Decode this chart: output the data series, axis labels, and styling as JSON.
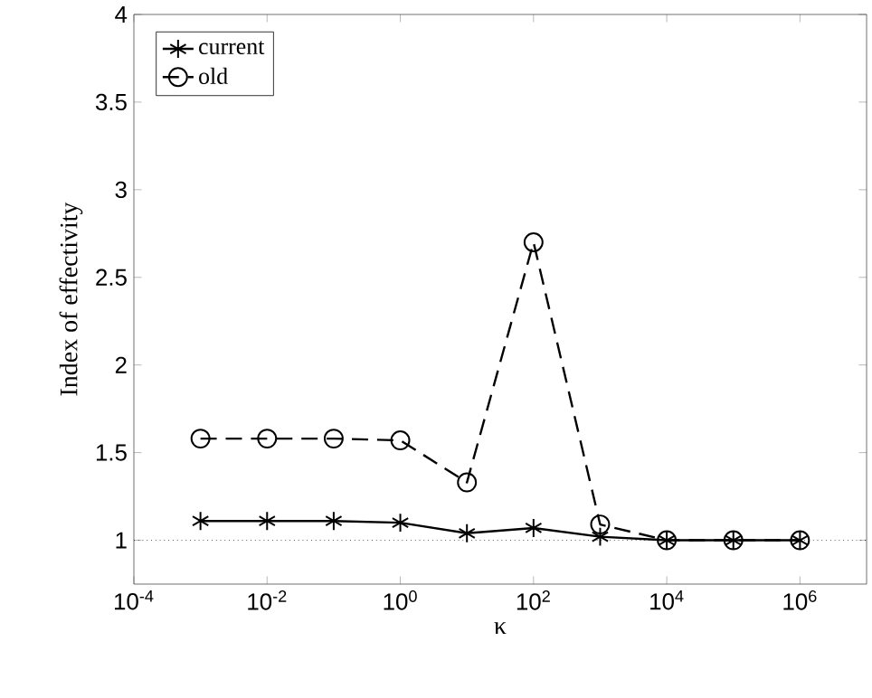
{
  "chart_data": {
    "type": "line",
    "xlabel": "κ",
    "ylabel": "Index of effectivity",
    "log": "x",
    "x": [
      0.001,
      0.01,
      0.1,
      1,
      10,
      100,
      1000,
      10000,
      100000,
      1000000
    ],
    "series": [
      {
        "name": "current",
        "color": "#000000",
        "marker": "cross",
        "line_style": "solid",
        "values": [
          1.11,
          1.11,
          1.11,
          1.1,
          1.04,
          1.07,
          1.02,
          1,
          1,
          1
        ]
      },
      {
        "name": "old",
        "color": "#000000",
        "marker": "circle",
        "line_style": "dashed",
        "values": [
          1.58,
          1.58,
          1.58,
          1.57,
          1.33,
          2.7,
          1.09,
          1,
          1,
          1
        ]
      }
    ],
    "xlim": [
      0.0001,
      10000000
    ],
    "xticks": [
      {
        "value": 0.0001,
        "label": "10$^{-4}$"
      },
      {
        "value": 0.01,
        "label": "10$^{-2}$"
      },
      {
        "value": 1,
        "label": "10$^{0}$"
      },
      {
        "value": 100,
        "label": "10$^{2}$"
      },
      {
        "value": 10000,
        "label": "10$^{4}$"
      },
      {
        "value": 1000000,
        "label": "10$^{6}$"
      }
    ],
    "ylim": [
      0.75,
      4
    ],
    "yticks": [
      1,
      1.5,
      2,
      2.5,
      3,
      3.5,
      4
    ],
    "ref_lines": [
      {
        "axis": "y",
        "value": 1,
        "color": "#000000",
        "line_style": "dotted"
      }
    ],
    "grid": false,
    "legend": "top left"
  }
}
